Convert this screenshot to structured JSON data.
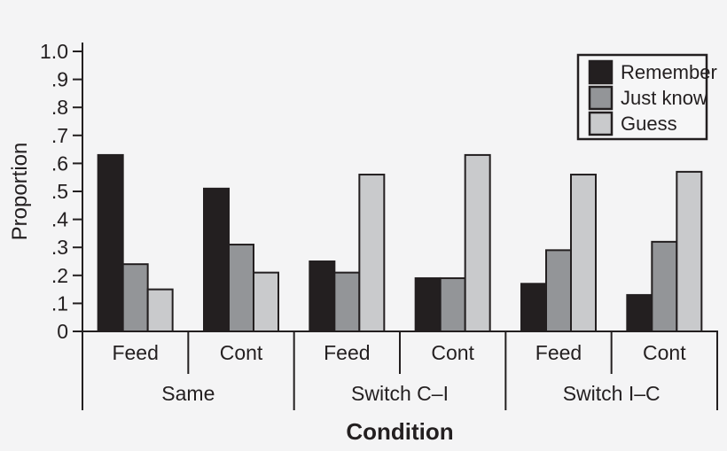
{
  "page": {
    "background": "#f4f4f5",
    "ink_color": "#231f20"
  },
  "chart_data": {
    "type": "bar",
    "title": "",
    "xlabel": "Condition",
    "ylabel": "Proportion",
    "ylim": [
      0,
      1.0
    ],
    "ytick_step": 0.1,
    "ytick_labels": [
      "0",
      ".1",
      ".2",
      ".3",
      ".4",
      ".5",
      ".6",
      ".7",
      ".8",
      ".9",
      "1.0"
    ],
    "grid": false,
    "legend": {
      "position": "top-right",
      "entries": [
        {
          "label": "Remember",
          "color": "#231f20"
        },
        {
          "label": "Just know",
          "color": "#939598"
        },
        {
          "label": "Guess",
          "color": "#c9cacc"
        }
      ]
    },
    "groups": [
      {
        "label": "Same",
        "subgroups": [
          "Feed",
          "Cont"
        ]
      },
      {
        "label": "Switch C–I",
        "subgroups": [
          "Feed",
          "Cont"
        ]
      },
      {
        "label": "Switch I–C",
        "subgroups": [
          "Feed",
          "Cont"
        ]
      }
    ],
    "categories": [
      "Same / Feed",
      "Same / Cont",
      "Switch C–I / Feed",
      "Switch C–I / Cont",
      "Switch I–C / Feed",
      "Switch I–C / Cont"
    ],
    "series": [
      {
        "name": "Remember",
        "color": "#231f20",
        "values": [
          0.63,
          0.51,
          0.25,
          0.19,
          0.17,
          0.13
        ]
      },
      {
        "name": "Just know",
        "color": "#939598",
        "values": [
          0.24,
          0.31,
          0.21,
          0.19,
          0.29,
          0.32
        ]
      },
      {
        "name": "Guess",
        "color": "#c9cacc",
        "values": [
          0.15,
          0.21,
          0.56,
          0.63,
          0.56,
          0.57
        ]
      }
    ]
  }
}
